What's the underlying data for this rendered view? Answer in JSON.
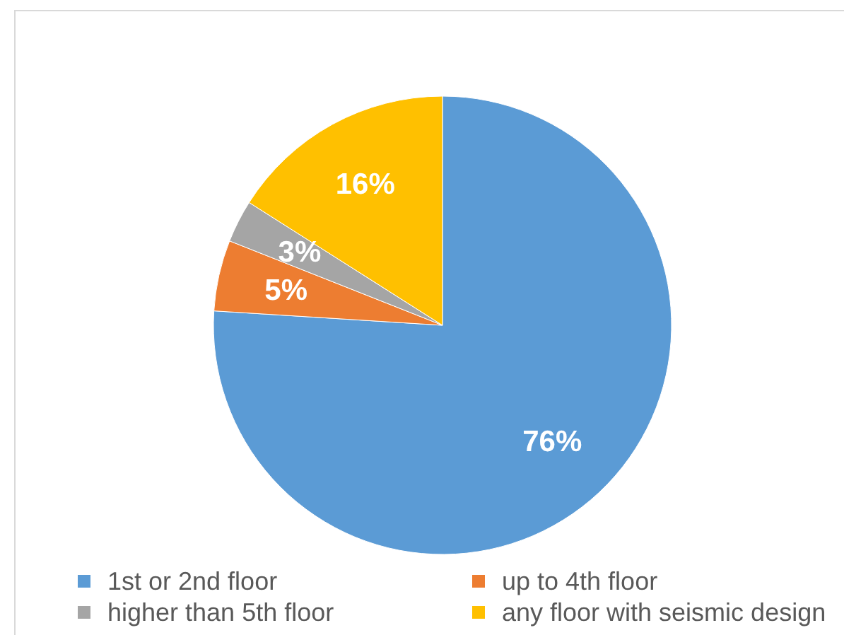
{
  "chart_data": {
    "type": "pie",
    "categories": [
      "1st or 2nd floor",
      "up to 4th floor",
      "higher than 5th floor",
      "any floor with seismic design"
    ],
    "values": [
      76,
      5,
      3,
      16
    ],
    "colors": [
      "#5b9bd5",
      "#ed7d31",
      "#a5a5a5",
      "#ffc000"
    ],
    "value_labels": [
      "76%",
      "5%",
      "3%",
      "16%"
    ],
    "legend": "bottom"
  }
}
